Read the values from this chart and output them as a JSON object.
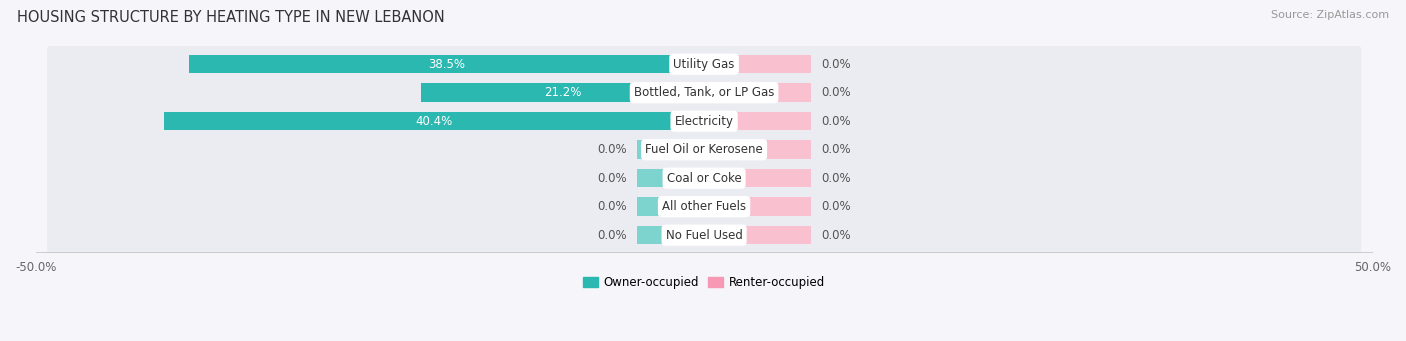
{
  "title": "HOUSING STRUCTURE BY HEATING TYPE IN NEW LEBANON",
  "source": "Source: ZipAtlas.com",
  "categories": [
    "Utility Gas",
    "Bottled, Tank, or LP Gas",
    "Electricity",
    "Fuel Oil or Kerosene",
    "Coal or Coke",
    "All other Fuels",
    "No Fuel Used"
  ],
  "owner_values": [
    38.5,
    21.2,
    40.4,
    0.0,
    0.0,
    0.0,
    0.0
  ],
  "renter_values": [
    0.0,
    0.0,
    0.0,
    0.0,
    0.0,
    0.0,
    0.0
  ],
  "owner_color_strong": "#2ab8b0",
  "owner_color_weak": "#7dd4cf",
  "renter_color_strong": "#f799b4",
  "renter_color_weak": "#f9c0d0",
  "bg_row": "#ebebf2",
  "bg_fig": "#f5f5fa",
  "xlim": [
    -50,
    50
  ],
  "zero_stub": 5.0,
  "renter_stub": 8.0,
  "legend_labels": [
    "Owner-occupied",
    "Renter-occupied"
  ],
  "title_fontsize": 10.5,
  "source_fontsize": 8,
  "label_fontsize": 8.5,
  "category_fontsize": 8.5,
  "x_tick_left": "-50.0%",
  "x_tick_right": "50.0%"
}
